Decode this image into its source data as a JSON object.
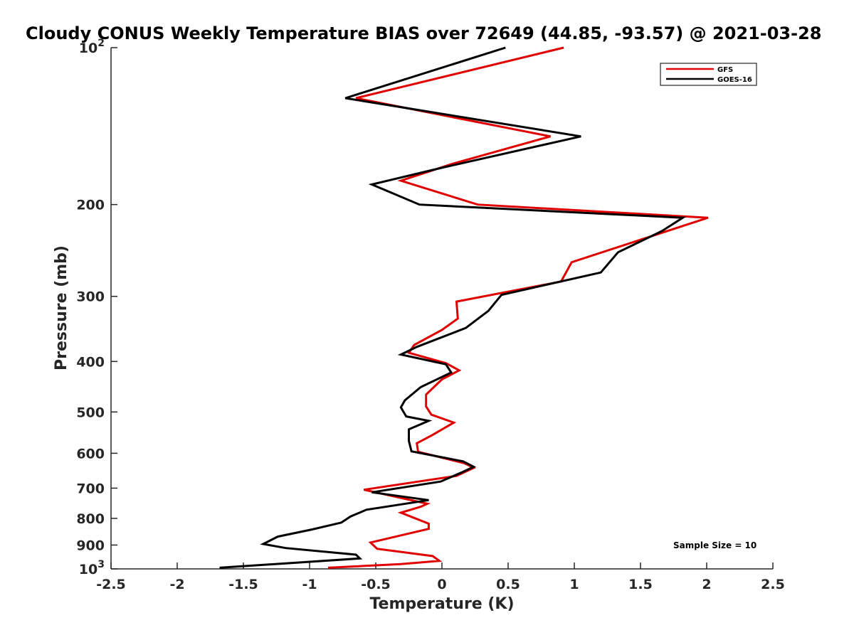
{
  "chart_data": {
    "type": "line",
    "title": "Cloudy CONUS Weekly Temperature BIAS over 72649 (44.85, -93.57) @ 2021-03-28",
    "xlabel": "Temperature (K)",
    "ylabel": "Pressure (mb)",
    "xlim": [
      -2.5,
      2.5
    ],
    "ylim": [
      100,
      1000
    ],
    "y_scale": "log",
    "y_reversed": true,
    "x_ticks": [
      -2.5,
      -2,
      -1.5,
      -1,
      -0.5,
      0,
      0.5,
      1,
      1.5,
      2,
      2.5
    ],
    "x_tick_labels": [
      "-2.5",
      "-2",
      "-1.5",
      "-1",
      "-0.5",
      "0",
      "0.5",
      "1",
      "1.5",
      "2",
      "2.5"
    ],
    "y_ticks": [
      {
        "value": 100,
        "label": "10",
        "sup": "2"
      },
      {
        "value": 200,
        "label": "200",
        "sup": ""
      },
      {
        "value": 300,
        "label": "300",
        "sup": ""
      },
      {
        "value": 400,
        "label": "400",
        "sup": ""
      },
      {
        "value": 500,
        "label": "500",
        "sup": ""
      },
      {
        "value": 600,
        "label": "600",
        "sup": ""
      },
      {
        "value": 700,
        "label": "700",
        "sup": ""
      },
      {
        "value": 800,
        "label": "800",
        "sup": ""
      },
      {
        "value": 900,
        "label": "900",
        "sup": ""
      },
      {
        "value": 1000,
        "label": "10",
        "sup": "3"
      }
    ],
    "grid": false,
    "legend_position": "top-right",
    "series": [
      {
        "name": "GFS",
        "color": "#e00000",
        "points": [
          [
            0.92,
            100
          ],
          [
            -0.65,
            125
          ],
          [
            0.82,
            148
          ],
          [
            0.08,
            167
          ],
          [
            -0.31,
            180
          ],
          [
            0.27,
            200
          ],
          [
            2.01,
            212
          ],
          [
            0.98,
            258
          ],
          [
            0.9,
            281
          ],
          [
            0.11,
            307
          ],
          [
            0.12,
            331
          ],
          [
            0.0,
            348
          ],
          [
            -0.21,
            372
          ],
          [
            -0.25,
            385
          ],
          [
            0.03,
            403
          ],
          [
            0.13,
            416
          ],
          [
            0.0,
            433
          ],
          [
            -0.12,
            463
          ],
          [
            -0.12,
            488
          ],
          [
            -0.08,
            506
          ],
          [
            0.09,
            524
          ],
          [
            -0.08,
            555
          ],
          [
            -0.19,
            574
          ],
          [
            -0.18,
            596
          ],
          [
            0.17,
            627
          ],
          [
            0.24,
            640
          ],
          [
            0.11,
            663
          ],
          [
            -0.59,
            705
          ],
          [
            -0.11,
            750
          ],
          [
            -0.16,
            760
          ],
          [
            -0.31,
            780
          ],
          [
            -0.1,
            819
          ],
          [
            -0.1,
            838
          ],
          [
            -0.54,
            890
          ],
          [
            -0.49,
            915
          ],
          [
            -0.07,
            945
          ],
          [
            -0.02,
            965
          ],
          [
            -0.31,
            979
          ],
          [
            -0.86,
            995
          ]
        ]
      },
      {
        "name": "GOES-16",
        "color": "#000000",
        "points": [
          [
            0.48,
            100
          ],
          [
            -0.73,
            125
          ],
          [
            1.05,
            148
          ],
          [
            0.0,
            170
          ],
          [
            -0.53,
            183
          ],
          [
            -0.17,
            200
          ],
          [
            1.82,
            212
          ],
          [
            1.66,
            225
          ],
          [
            1.33,
            247
          ],
          [
            1.2,
            270
          ],
          [
            0.45,
            298
          ],
          [
            0.35,
            320
          ],
          [
            0.18,
            345
          ],
          [
            -0.19,
            375
          ],
          [
            -0.31,
            388
          ],
          [
            0.03,
            405
          ],
          [
            0.07,
            420
          ],
          [
            -0.16,
            448
          ],
          [
            -0.28,
            475
          ],
          [
            -0.31,
            490
          ],
          [
            -0.27,
            510
          ],
          [
            -0.1,
            520
          ],
          [
            -0.25,
            540
          ],
          [
            -0.25,
            568
          ],
          [
            -0.23,
            595
          ],
          [
            0.16,
            622
          ],
          [
            0.24,
            637
          ],
          [
            0.15,
            653
          ],
          [
            -0.01,
            680
          ],
          [
            -0.53,
            713
          ],
          [
            -0.1,
            738
          ],
          [
            -0.57,
            770
          ],
          [
            -0.69,
            793
          ],
          [
            -0.76,
            815
          ],
          [
            -0.98,
            840
          ],
          [
            -1.24,
            867
          ],
          [
            -1.35,
            896
          ],
          [
            -1.18,
            912
          ],
          [
            -0.65,
            939
          ],
          [
            -0.62,
            955
          ],
          [
            -1.68,
            995
          ]
        ]
      }
    ],
    "annotations": [
      "Sample Size = 10"
    ]
  }
}
